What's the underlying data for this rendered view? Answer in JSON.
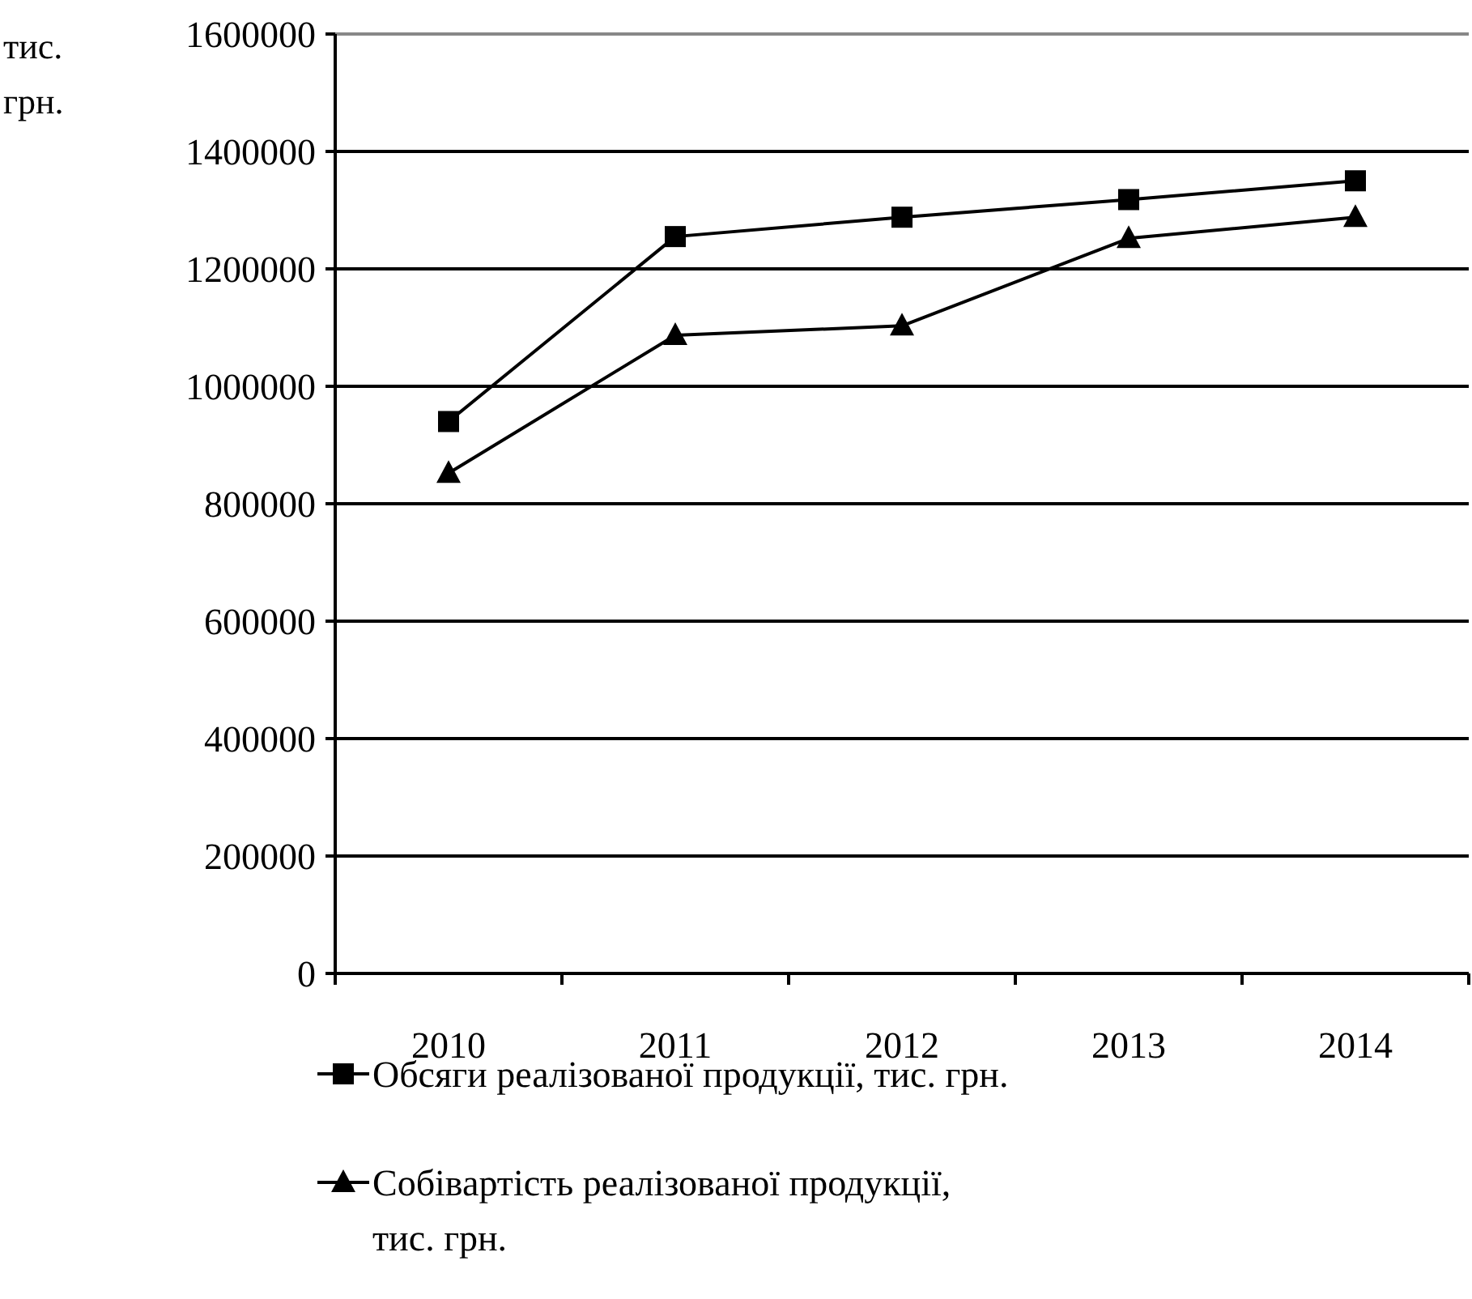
{
  "chart_data": {
    "type": "line",
    "ylabel": "тис. грн.",
    "categories": [
      "2010",
      "2011",
      "2012",
      "2013",
      "2014"
    ],
    "series": [
      {
        "name": "Обсяги реалізованої продукції, тис. грн.",
        "color": "#000000",
        "marker": "square",
        "values": [
          940000,
          1255000,
          1288000,
          1318000,
          1350000
        ]
      },
      {
        "name": "Собівартість реалізованої продукції, тис. грн.",
        "color": "#000000",
        "marker": "triangle",
        "values": [
          852000,
          1087000,
          1103000,
          1252000,
          1288000
        ]
      }
    ],
    "ylim": [
      0,
      1600000
    ],
    "yticks": [
      0,
      200000,
      400000,
      600000,
      800000,
      1000000,
      1200000,
      1400000,
      1600000
    ],
    "grid": "y",
    "legend": "bottom",
    "line_style": "solid"
  }
}
